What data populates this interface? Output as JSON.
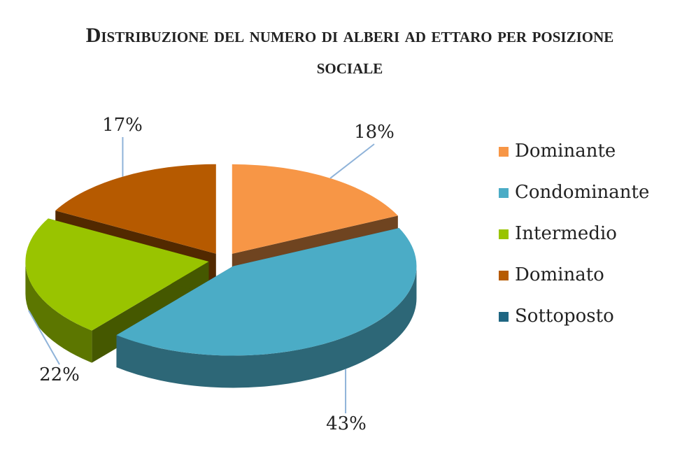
{
  "chart_data": {
    "type": "pie",
    "title": "Distribuzione del numero di alberi ad ettaro per posizione sociale",
    "categories": [
      "Dominante",
      "Condominante",
      "Intermedio",
      "Dominato",
      "Sottoposto"
    ],
    "values": [
      18,
      43,
      22,
      17,
      0
    ],
    "value_labels": [
      "18%",
      "43%",
      "22%",
      "17%",
      null
    ],
    "colors": [
      "#f79646",
      "#4bacc6",
      "#99c400",
      "#b65a00",
      "#1f6682"
    ],
    "legend": "right"
  }
}
